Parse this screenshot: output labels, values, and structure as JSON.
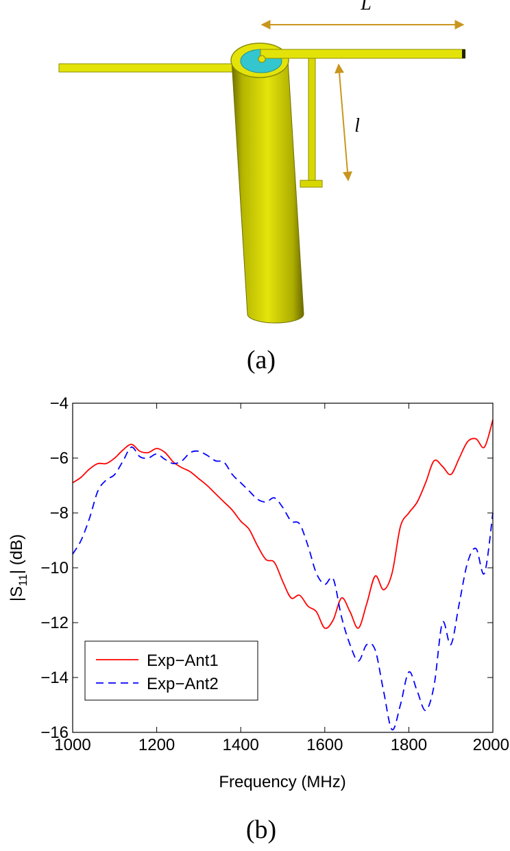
{
  "diagram": {
    "dim_long_label": "L",
    "dim_short_label": "l",
    "caption": "(a)",
    "colors": {
      "metal": "#e3e30a",
      "metal_dark": "#8c8c00",
      "dielectric": "#33c6cf",
      "dimension": "#c8961e"
    }
  },
  "chart_data": {
    "type": "line",
    "caption": "(b)",
    "title": "",
    "xlabel": "Frequency (MHz)",
    "ylabel": "|S11| (dB)",
    "ylabel_parts": {
      "prefix": "|S",
      "sub": "11",
      "suffix": "| (dB)"
    },
    "xlim": [
      1000,
      2000
    ],
    "ylim": [
      -16,
      -4
    ],
    "xticks": [
      1000,
      1200,
      1400,
      1600,
      1800,
      2000
    ],
    "yticks": [
      -16,
      -14,
      -12,
      -10,
      -8,
      -6,
      -4
    ],
    "grid": false,
    "legend_position": "bottom-left",
    "series": [
      {
        "name": "Exp−Ant1",
        "color": "#ff0000",
        "dash": "solid",
        "x": [
          1000,
          1020,
          1040,
          1060,
          1080,
          1100,
          1120,
          1140,
          1160,
          1180,
          1200,
          1220,
          1240,
          1260,
          1280,
          1300,
          1320,
          1340,
          1360,
          1380,
          1400,
          1420,
          1440,
          1460,
          1480,
          1500,
          1520,
          1540,
          1560,
          1580,
          1600,
          1620,
          1640,
          1660,
          1680,
          1700,
          1720,
          1740,
          1760,
          1780,
          1800,
          1820,
          1840,
          1860,
          1880,
          1900,
          1920,
          1940,
          1960,
          1980,
          2000
        ],
        "y": [
          -6.9,
          -6.7,
          -6.4,
          -6.2,
          -6.2,
          -6.0,
          -5.7,
          -5.5,
          -5.75,
          -5.8,
          -5.65,
          -5.8,
          -6.15,
          -6.35,
          -6.5,
          -6.75,
          -7.0,
          -7.3,
          -7.6,
          -7.9,
          -8.3,
          -8.6,
          -9.2,
          -9.7,
          -9.8,
          -10.5,
          -11.1,
          -11.0,
          -11.4,
          -11.6,
          -12.2,
          -11.9,
          -11.1,
          -11.6,
          -12.2,
          -11.3,
          -10.3,
          -10.8,
          -10.2,
          -8.5,
          -8.0,
          -7.6,
          -6.9,
          -6.1,
          -6.3,
          -6.6,
          -6.0,
          -5.4,
          -5.3,
          -5.6,
          -4.6
        ]
      },
      {
        "name": "Exp−Ant2",
        "color": "#0000ff",
        "dash": "dashed",
        "x": [
          1000,
          1020,
          1040,
          1060,
          1080,
          1100,
          1120,
          1140,
          1160,
          1180,
          1200,
          1220,
          1240,
          1260,
          1280,
          1300,
          1320,
          1340,
          1360,
          1380,
          1400,
          1420,
          1440,
          1460,
          1480,
          1500,
          1520,
          1540,
          1560,
          1580,
          1600,
          1620,
          1640,
          1660,
          1680,
          1700,
          1720,
          1740,
          1760,
          1780,
          1800,
          1820,
          1840,
          1860,
          1880,
          1900,
          1920,
          1940,
          1960,
          1980,
          2000
        ],
        "y": [
          -9.5,
          -9.0,
          -8.2,
          -7.2,
          -6.8,
          -6.6,
          -6.1,
          -5.6,
          -5.95,
          -6.0,
          -5.85,
          -6.05,
          -6.2,
          -6.1,
          -5.8,
          -5.75,
          -5.9,
          -6.1,
          -6.15,
          -6.6,
          -6.9,
          -7.2,
          -7.5,
          -7.6,
          -7.45,
          -7.8,
          -8.3,
          -8.4,
          -9.2,
          -10.2,
          -10.6,
          -10.4,
          -11.8,
          -12.8,
          -13.4,
          -12.8,
          -13.0,
          -14.5,
          -15.9,
          -15.0,
          -13.8,
          -14.5,
          -15.2,
          -14.3,
          -12.0,
          -12.8,
          -11.3,
          -9.8,
          -9.3,
          -10.2,
          -8.0
        ]
      }
    ]
  }
}
